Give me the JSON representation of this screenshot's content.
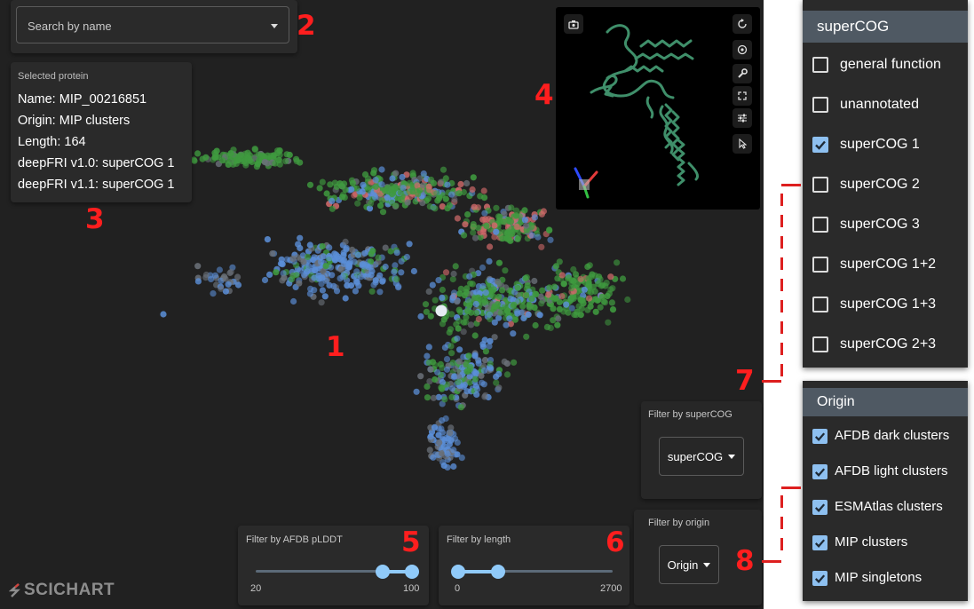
{
  "search": {
    "placeholder": "Search by name"
  },
  "selected_protein": {
    "label": "Selected protein",
    "rows": [
      "Name: MIP_00216851",
      "Origin: MIP clusters",
      "Length: 164",
      "deepFRI v1.0: superCOG 1",
      "deepFRI v1.1: superCOG 1"
    ]
  },
  "filters": {
    "plddt": {
      "label": "Filter by AFDB pLDDT",
      "min": "20",
      "max": "100",
      "range": [
        20,
        100
      ],
      "low": 85,
      "high": 100
    },
    "length": {
      "label": "Filter by length",
      "min": "0",
      "max": "2700",
      "range": [
        0,
        2700
      ],
      "low": 0,
      "high": 700
    },
    "supercog": {
      "label": "Filter by superCOG",
      "value": "superCOG"
    },
    "origin": {
      "label": "Filter by origin",
      "value": "Origin"
    }
  },
  "supercog_menu": {
    "header": "superCOG",
    "items": [
      {
        "label": "general function",
        "checked": false
      },
      {
        "label": "unannotated",
        "checked": false
      },
      {
        "label": "superCOG 1",
        "checked": true
      },
      {
        "label": "superCOG 2",
        "checked": false
      },
      {
        "label": "superCOG 3",
        "checked": false
      },
      {
        "label": "superCOG 1+2",
        "checked": false
      },
      {
        "label": "superCOG 1+3",
        "checked": false
      },
      {
        "label": "superCOG 2+3",
        "checked": false
      }
    ]
  },
  "origin_menu": {
    "header": "Origin",
    "items": [
      {
        "label": "AFDB dark clusters",
        "checked": true
      },
      {
        "label": "AFDB light clusters",
        "checked": true
      },
      {
        "label": "ESMAtlas clusters",
        "checked": true
      },
      {
        "label": "MIP clusters",
        "checked": true
      },
      {
        "label": "MIP singletons",
        "checked": true
      }
    ]
  },
  "callouts": [
    "1",
    "2",
    "3",
    "4",
    "5",
    "6",
    "7",
    "8"
  ],
  "logo": {
    "text": "SCICHART"
  },
  "colors": {
    "blue": "#5b8fd8",
    "green": "#3f9a3f",
    "red": "#d06a6a",
    "gray": "#6a7078",
    "accent": "#90caf9",
    "callout": "#ff1e1e"
  },
  "viewer_icons": [
    "camera-icon",
    "rotate-icon",
    "settings-icon",
    "wrench-icon",
    "fullscreen-icon",
    "sliders-icon",
    "cursor-icon"
  ]
}
